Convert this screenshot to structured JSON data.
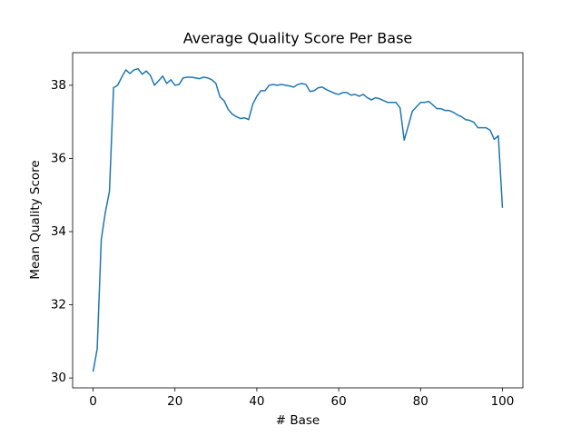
{
  "chart_data": {
    "type": "line",
    "title": "Average Quality Score Per Base",
    "x_label": "# Base",
    "y_label": "Mean Quality Score",
    "x": [
      0,
      1,
      2,
      3,
      4,
      5,
      6,
      7,
      8,
      9,
      10,
      11,
      12,
      13,
      14,
      15,
      16,
      17,
      18,
      19,
      20,
      21,
      22,
      23,
      24,
      25,
      26,
      27,
      28,
      29,
      30,
      31,
      32,
      33,
      34,
      35,
      36,
      37,
      38,
      39,
      40,
      41,
      42,
      43,
      44,
      45,
      46,
      47,
      48,
      49,
      50,
      51,
      52,
      53,
      54,
      55,
      56,
      57,
      58,
      59,
      60,
      61,
      62,
      63,
      64,
      65,
      66,
      67,
      68,
      69,
      70,
      71,
      72,
      73,
      74,
      75,
      76,
      77,
      78,
      79,
      80,
      81,
      82,
      83,
      84,
      85,
      86,
      87,
      88,
      89,
      90,
      91,
      92,
      93,
      94,
      95,
      96,
      97,
      98,
      99,
      100
    ],
    "series": [
      {
        "name": "Mean Quality Score",
        "color": "#1f77b4",
        "values": [
          30.17,
          30.79,
          33.79,
          34.53,
          35.1,
          37.93,
          38.0,
          38.22,
          38.42,
          38.32,
          38.42,
          38.45,
          38.3,
          38.39,
          38.27,
          38.0,
          38.12,
          38.25,
          38.05,
          38.15,
          38.0,
          38.02,
          38.2,
          38.22,
          38.22,
          38.2,
          38.18,
          38.22,
          38.2,
          38.15,
          38.05,
          37.68,
          37.58,
          37.34,
          37.21,
          37.14,
          37.09,
          37.11,
          37.06,
          37.48,
          37.7,
          37.85,
          37.85,
          38.0,
          38.02,
          38.0,
          38.02,
          38.0,
          37.98,
          37.95,
          38.02,
          38.05,
          38.02,
          37.83,
          37.85,
          37.93,
          37.95,
          37.88,
          37.83,
          37.78,
          37.75,
          37.8,
          37.8,
          37.73,
          37.75,
          37.7,
          37.75,
          37.66,
          37.6,
          37.66,
          37.63,
          37.58,
          37.53,
          37.53,
          37.53,
          37.38,
          36.5,
          36.89,
          37.29,
          37.41,
          37.53,
          37.53,
          37.56,
          37.46,
          37.36,
          37.36,
          37.31,
          37.31,
          37.26,
          37.19,
          37.14,
          37.06,
          37.04,
          36.99,
          36.84,
          36.84,
          36.84,
          36.77,
          36.52,
          36.62,
          34.65
        ]
      }
    ],
    "xlim": [
      -5,
      105
    ],
    "ylim": [
      29.73,
      38.89
    ],
    "xticks": [
      0,
      20,
      40,
      60,
      80,
      100
    ],
    "yticks": [
      30,
      32,
      34,
      36,
      38
    ]
  }
}
